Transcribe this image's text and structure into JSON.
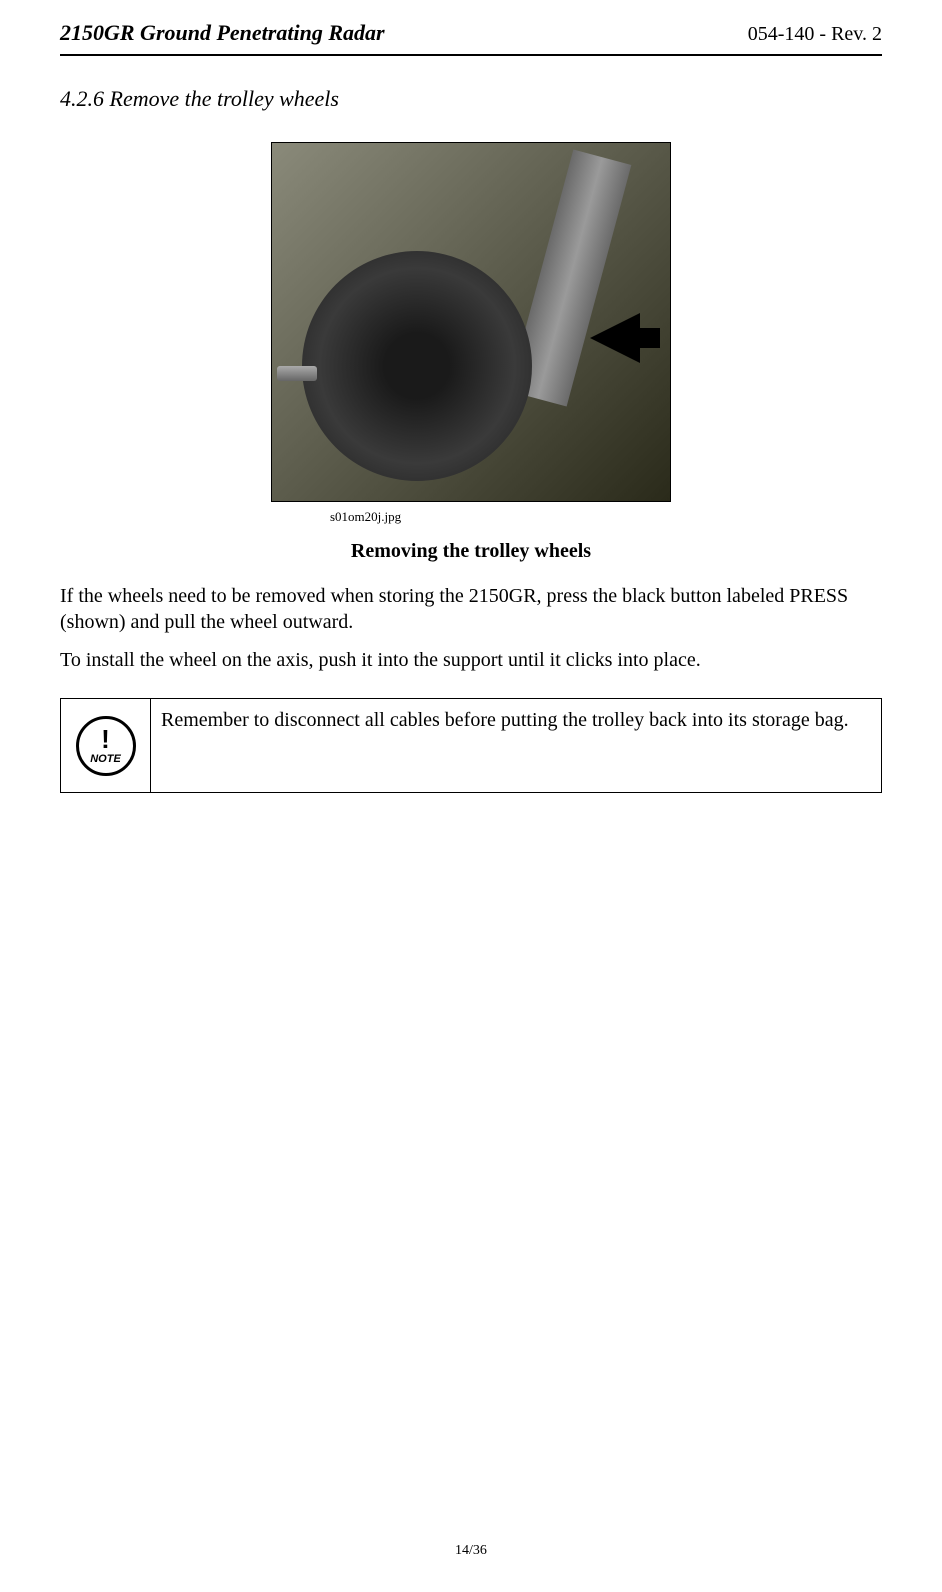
{
  "header": {
    "left": "2150GR Ground Penetrating Radar",
    "right": "054-140 - Rev. 2"
  },
  "section": {
    "title": "4.2.6 Remove the trolley wheels"
  },
  "figure": {
    "caption": "s01om20j.jpg",
    "title": "Removing the trolley wheels"
  },
  "paragraphs": {
    "p1": "If the wheels need to be removed when storing the 2150GR, press the black button labeled PRESS (shown) and pull the wheel outward.",
    "p2": "To install the wheel on the axis, push it into the support until it clicks into place."
  },
  "note": {
    "exclaim": "!",
    "label": "NOTE",
    "text": "Remember to disconnect all cables before putting the trolley back into its storage bag."
  },
  "footer": {
    "page": "14/36"
  }
}
